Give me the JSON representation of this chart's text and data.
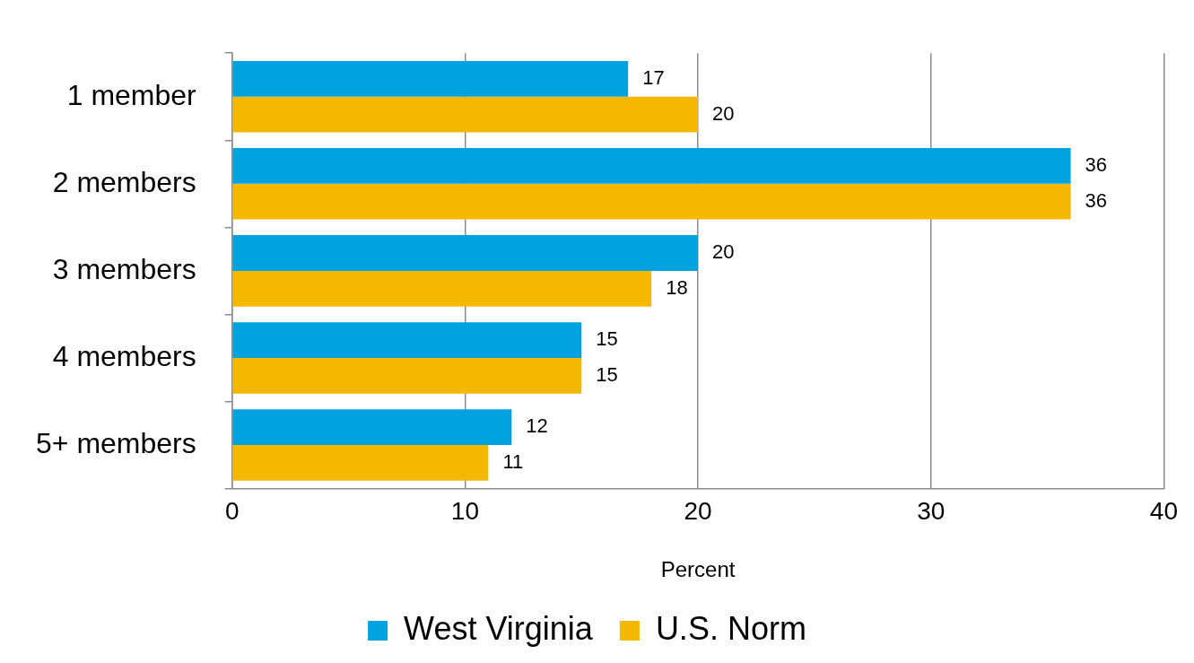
{
  "chart_data": {
    "type": "bar",
    "orientation": "horizontal",
    "xlabel": "Percent",
    "categories": [
      "1 member",
      "2 members",
      "3 members",
      "4 members",
      "5+ members"
    ],
    "series": [
      {
        "name": "West Virginia",
        "color": "#00a3e0",
        "values": [
          17,
          36,
          20,
          15,
          12
        ]
      },
      {
        "name": "U.S. Norm",
        "color": "#f5b800",
        "values": [
          20,
          36,
          18,
          15,
          11
        ]
      }
    ],
    "xlim": [
      0,
      40
    ],
    "xticks": [
      0,
      10,
      20,
      30,
      40
    ],
    "grid": "x",
    "legend": "bottom",
    "data_labels": true
  }
}
